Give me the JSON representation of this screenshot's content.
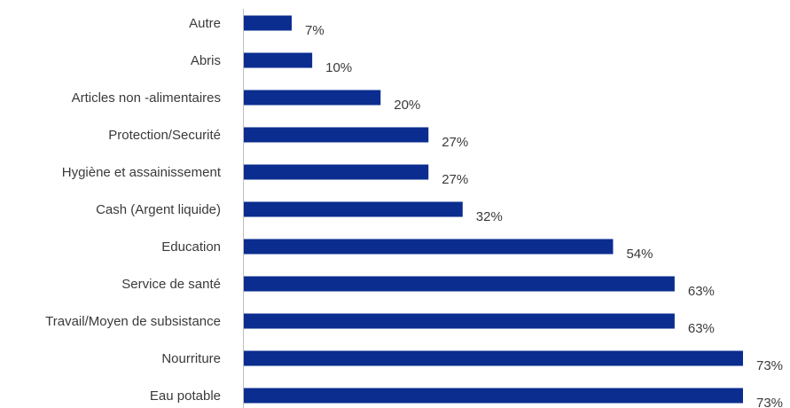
{
  "chart_data": {
    "type": "bar",
    "orientation": "horizontal",
    "categories": [
      "Autre",
      "Abris",
      "Articles non -alimentaires",
      "Protection/Securité",
      "Hygiène et assainissement",
      "Cash (Argent liquide)",
      "Education",
      "Service de santé",
      "Travail/Moyen de subsistance",
      "Nourriture",
      "Eau potable"
    ],
    "values": [
      7,
      10,
      20,
      27,
      27,
      32,
      54,
      63,
      63,
      73,
      73
    ],
    "value_labels": [
      "7%",
      "10%",
      "20%",
      "27%",
      "27%",
      "32%",
      "54%",
      "63%",
      "63%",
      "73%",
      "73%"
    ],
    "xlim": [
      0,
      73
    ],
    "grid": false,
    "legend": "none",
    "bar_color": "#0a2d8f"
  }
}
